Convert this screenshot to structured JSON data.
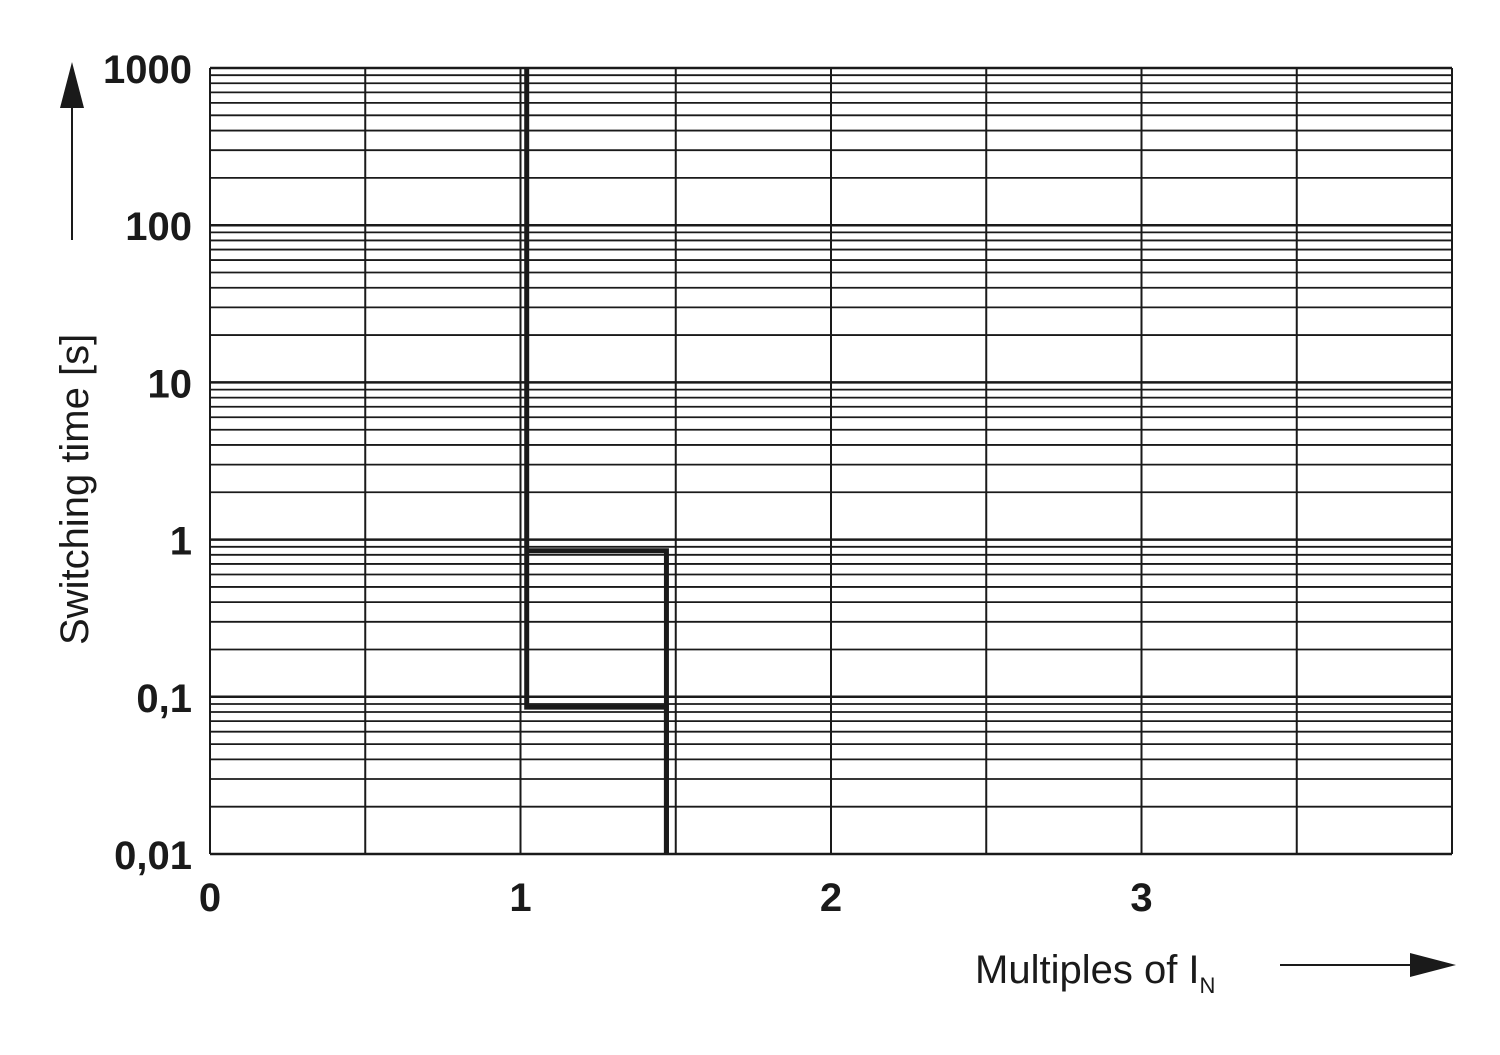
{
  "chart_data": {
    "type": "line",
    "title": "",
    "xlabel": "Multiples of I",
    "xlabel_subscript": "N",
    "ylabel": "Switching time [s]",
    "xlim": [
      0,
      4
    ],
    "ylim": [
      0.01,
      1000
    ],
    "y_scale": "log",
    "grid": true,
    "x_ticks": [
      {
        "value": 0,
        "label": "0"
      },
      {
        "value": 1,
        "label": "1"
      },
      {
        "value": 2,
        "label": "2"
      },
      {
        "value": 3,
        "label": "3"
      }
    ],
    "y_ticks": [
      {
        "value": 1000,
        "label": "1000"
      },
      {
        "value": 100,
        "label": "100"
      },
      {
        "value": 10,
        "label": "10"
      },
      {
        "value": 1,
        "label": "1"
      },
      {
        "value": 0.1,
        "label": "0,1"
      },
      {
        "value": 0.01,
        "label": "0,01"
      }
    ],
    "series": [
      {
        "x": [
          1.02,
          1.02,
          1.47,
          1.47
        ],
        "y": [
          1000,
          0.086,
          0.086,
          0.01
        ]
      },
      {
        "x": [
          1.02,
          1.47,
          1.47
        ],
        "y": [
          0.85,
          0.85,
          0.01
        ]
      }
    ],
    "line_color": "#1a1a1a",
    "grid_color": "#1a1a1a"
  }
}
